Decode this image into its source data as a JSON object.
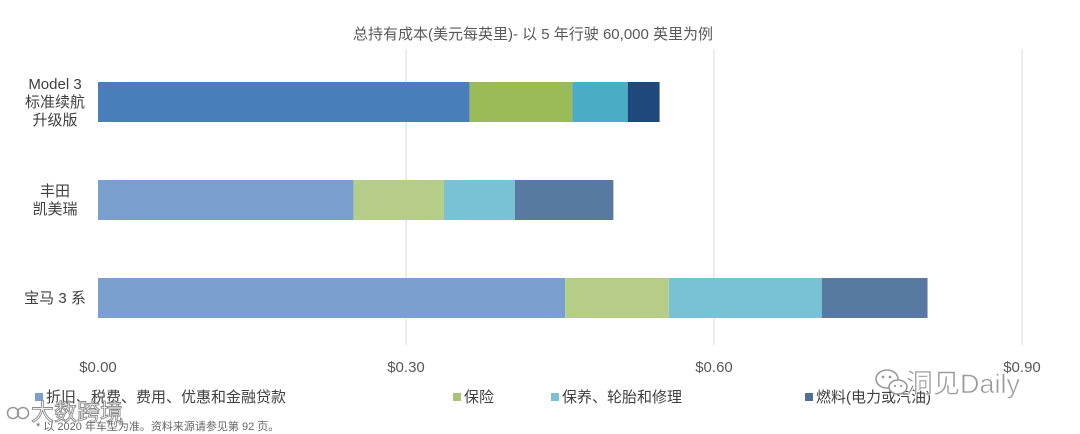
{
  "chart_data": {
    "type": "bar",
    "orientation": "horizontal",
    "stacked": true,
    "title": "总持有成本(美元每英里)- 以 5 年行驶 60,000 英里为例",
    "xlabel": "",
    "ylabel": "",
    "xlim": [
      0,
      0.9
    ],
    "x_ticks": [
      0,
      0.3,
      0.6,
      0.9
    ],
    "x_tick_labels": [
      "$0.00",
      "$0.30",
      "$0.60",
      "$0.90"
    ],
    "grid": true,
    "legend_position": "bottom",
    "categories": [
      [
        "Model 3",
        "标准续航",
        "升级版"
      ],
      [
        "丰田",
        "凯美瑞"
      ],
      [
        "宝马 3 系"
      ]
    ],
    "series": [
      {
        "name": "折旧、税费、费用、优惠和金融贷款",
        "values": [
          0.362,
          0.249,
          0.455
        ]
      },
      {
        "name": "保险",
        "values": [
          0.1,
          0.088,
          0.101
        ]
      },
      {
        "name": "保养、轮胎和修理",
        "values": [
          0.054,
          0.069,
          0.149
        ]
      },
      {
        "name": "燃料(电力或汽油)",
        "values": [
          0.031,
          0.096,
          0.103
        ]
      }
    ],
    "bar_colors": [
      [
        "#4a7ebb",
        "#9bbb59",
        "#4bacc6",
        "#1f497d"
      ],
      [
        "#7b9fcf",
        "#b5cd89",
        "#79c1d5",
        "#587aa0"
      ],
      [
        "#7b9fcf",
        "#b5cd89",
        "#79c1d5",
        "#587aa0"
      ]
    ],
    "legend_colors": [
      "#7b9fcf",
      "#a9c47a",
      "#79c1d5",
      "#4f6f98"
    ]
  },
  "footnote": "* 以 2020 年车型为准。资料来源请参见第 92 页。",
  "watermarks": {
    "right": "洞见Daily",
    "left": "大数跨境"
  }
}
